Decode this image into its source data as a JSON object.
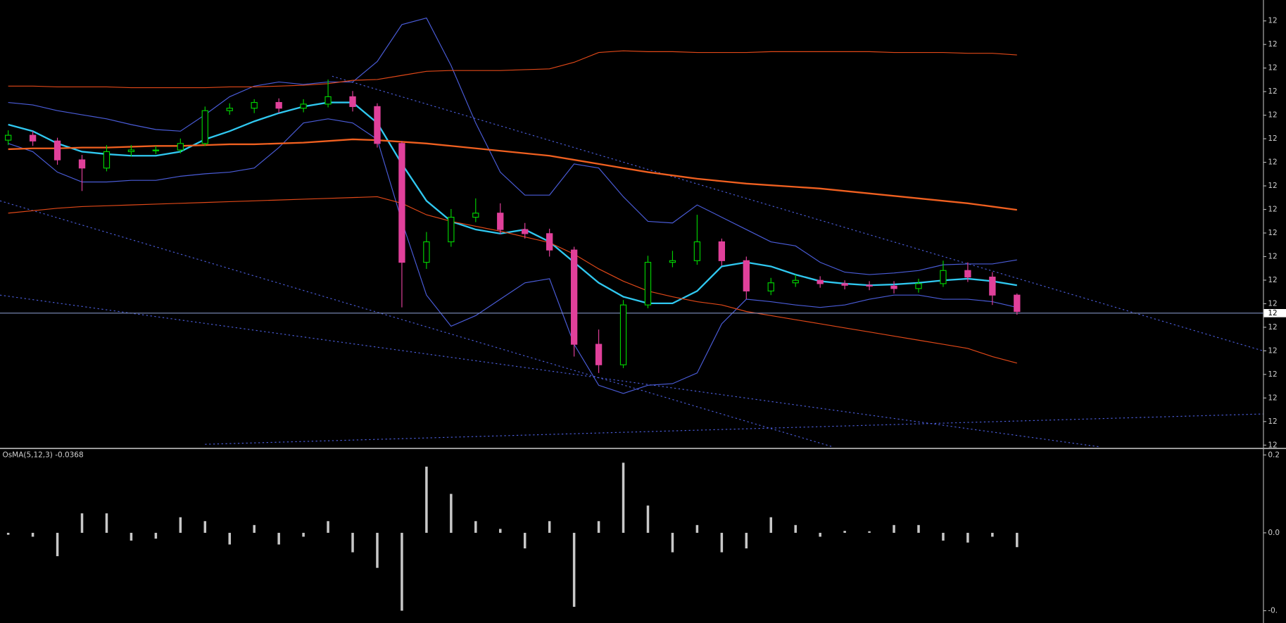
{
  "chart_data": [
    {
      "type": "candlestick",
      "open": [
        372,
        378,
        371,
        348,
        338,
        358,
        360,
        360,
        368,
        408,
        411,
        418,
        411,
        416,
        425,
        413,
        368,
        223,
        248,
        278,
        283,
        263,
        258,
        238,
        123,
        98,
        171,
        223,
        225,
        248,
        225,
        188,
        198,
        201,
        197,
        195,
        194,
        191,
        197,
        213,
        205,
        183
      ],
      "high": [
        384,
        383,
        375,
        354,
        366,
        366,
        365,
        374,
        413,
        417,
        422,
        423,
        422,
        446,
        432,
        417,
        371,
        260,
        288,
        301,
        295,
        271,
        264,
        242,
        141,
        177,
        231,
        237,
        281,
        252,
        230,
        204,
        208,
        206,
        201,
        200,
        200,
        203,
        225,
        223,
        211,
        185
      ],
      "low": [
        366,
        365,
        342,
        310,
        334,
        352,
        355,
        356,
        365,
        403,
        405,
        405,
        406,
        412,
        407,
        363,
        168,
        215,
        242,
        272,
        257,
        252,
        230,
        108,
        88,
        94,
        167,
        217,
        220,
        219,
        178,
        183,
        193,
        192,
        190,
        189,
        185,
        186,
        193,
        199,
        171,
        159
      ],
      "close": [
        378,
        371,
        348,
        338,
        358,
        360,
        360,
        368,
        408,
        411,
        418,
        411,
        416,
        425,
        413,
        368,
        223,
        248,
        278,
        283,
        263,
        258,
        238,
        123,
        98,
        171,
        223,
        225,
        248,
        225,
        188,
        198,
        201,
        197,
        195,
        194,
        191,
        197,
        213,
        205,
        183,
        163
      ],
      "up_color": "#00d000",
      "down_color": "#e0409a",
      "series": [
        {
          "color": "#4a5cd8",
          "style": "thin",
          "values": [
            418,
            415,
            408,
            403,
            398,
            391,
            385,
            383,
            403,
            425,
            438,
            443,
            440,
            443,
            443,
            468,
            513,
            521,
            463,
            393,
            333,
            305,
            305,
            343,
            338,
            303,
            273,
            271,
            293,
            278,
            263,
            248,
            243,
            223,
            211,
            208,
            210,
            213,
            220,
            221,
            221,
            226
          ]
        },
        {
          "color": "#4a5cd8",
          "style": "thin",
          "values": [
            368,
            358,
            333,
            321,
            321,
            323,
            323,
            328,
            331,
            333,
            338,
            363,
            393,
            398,
            393,
            373,
            273,
            183,
            145,
            158,
            178,
            198,
            203,
            123,
            73,
            63,
            73,
            75,
            88,
            148,
            178,
            175,
            171,
            168,
            171,
            178,
            183,
            183,
            178,
            178,
            175,
            168
          ]
        },
        {
          "color": "#30c8f0",
          "style": "thick",
          "values": [
            391,
            383,
            368,
            358,
            355,
            353,
            353,
            358,
            373,
            383,
            395,
            405,
            413,
            418,
            418,
            393,
            343,
            298,
            273,
            263,
            258,
            263,
            248,
            223,
            198,
            181,
            173,
            173,
            188,
            218,
            223,
            218,
            208,
            200,
            197,
            195,
            196,
            198,
            201,
            203,
            200,
            195
          ]
        },
        {
          "color": "#e04818",
          "style": "thin",
          "values": [
            438,
            438,
            437,
            437,
            437,
            436,
            436,
            436,
            436,
            437,
            437,
            438,
            439,
            441,
            445,
            446,
            451,
            456,
            457,
            457,
            457,
            458,
            459,
            467,
            479,
            481,
            480,
            480,
            479,
            479,
            479,
            480,
            480,
            480,
            480,
            480,
            479,
            479,
            479,
            478,
            478,
            476
          ]
        },
        {
          "color": "#f06020",
          "style": "thick",
          "values": [
            361,
            362,
            362,
            363,
            363,
            364,
            365,
            365,
            366,
            367,
            367,
            368,
            369,
            371,
            373,
            372,
            370,
            368,
            365,
            362,
            359,
            356,
            353,
            348,
            343,
            338,
            333,
            329,
            325,
            322,
            319,
            317,
            315,
            313,
            310,
            307,
            304,
            301,
            298,
            295,
            291,
            287
          ]
        },
        {
          "color": "#e04818",
          "style": "thin",
          "values": [
            283,
            286,
            289,
            291,
            292,
            293,
            294,
            295,
            296,
            297,
            298,
            299,
            300,
            301,
            302,
            303,
            295,
            281,
            273,
            267,
            261,
            254,
            247,
            233,
            215,
            200,
            188,
            181,
            175,
            171,
            163,
            158,
            153,
            148,
            143,
            138,
            133,
            128,
            123,
            118,
            108,
            100
          ]
        }
      ],
      "current_price": {
        "value": 161,
        "label": "12"
      },
      "ylim": [
        -2,
        543
      ],
      "yticks": [
        {
          "value": 0,
          "label": "12"
        },
        {
          "value": 28.75,
          "label": "12"
        },
        {
          "value": 57.5,
          "label": "12"
        },
        {
          "value": 86.25,
          "label": "12"
        },
        {
          "value": 115,
          "label": "12"
        },
        {
          "value": 143.75,
          "label": "12"
        },
        {
          "value": 172.5,
          "label": "12"
        },
        {
          "value": 201.25,
          "label": "12"
        },
        {
          "value": 230,
          "label": "12"
        },
        {
          "value": 258.75,
          "label": "12"
        },
        {
          "value": 287.5,
          "label": "12"
        },
        {
          "value": 316.25,
          "label": "12"
        },
        {
          "value": 345,
          "label": "12"
        },
        {
          "value": 373.75,
          "label": "12"
        },
        {
          "value": 402.5,
          "label": "12"
        },
        {
          "value": 431.25,
          "label": "12"
        },
        {
          "value": 460,
          "label": "12"
        },
        {
          "value": 488.75,
          "label": "12"
        },
        {
          "value": 517.5,
          "label": "12"
        }
      ]
    },
    {
      "type": "bar",
      "title": "OsMA(5,12,3) -0.0368",
      "color": "#c8c8c8",
      "values": [
        -0.005,
        -0.01,
        -0.06,
        0.05,
        0.05,
        -0.02,
        -0.015,
        0.04,
        0.03,
        -0.03,
        0.02,
        -0.03,
        -0.01,
        0.03,
        -0.05,
        -0.09,
        -0.2,
        0.17,
        0.1,
        0.03,
        0.01,
        -0.04,
        0.03,
        -0.19,
        0.03,
        0.18,
        0.07,
        -0.05,
        0.02,
        -0.05,
        -0.04,
        0.04,
        0.02,
        -0.01,
        0.005,
        0.004,
        0.02,
        0.02,
        -0.02,
        -0.025,
        -0.01,
        -0.0368
      ],
      "ylim": [
        -0.2316,
        0.2147
      ],
      "yticks": [
        0.2,
        {
          "value": 0,
          "label": "0.0"
        },
        {
          "value": -0.2,
          "label": "-0."
        }
      ]
    }
  ]
}
